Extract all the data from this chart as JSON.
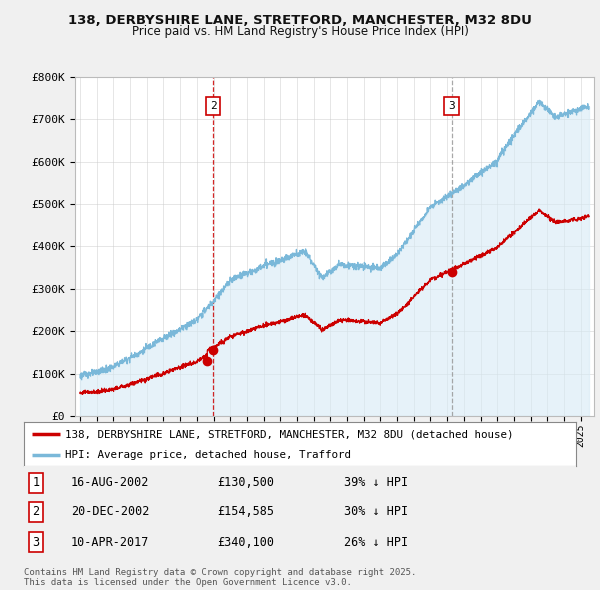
{
  "title_line1": "138, DERBYSHIRE LANE, STRETFORD, MANCHESTER, M32 8DU",
  "title_line2": "Price paid vs. HM Land Registry's House Price Index (HPI)",
  "ylim": [
    0,
    800000
  ],
  "yticks": [
    0,
    100000,
    200000,
    300000,
    400000,
    500000,
    600000,
    700000,
    800000
  ],
  "ytick_labels": [
    "£0",
    "£100K",
    "£200K",
    "£300K",
    "£400K",
    "£500K",
    "£600K",
    "£700K",
    "£800K"
  ],
  "hpi_color": "#7ab8d9",
  "hpi_fill_color": "#d6eaf5",
  "price_color": "#cc0000",
  "sale_marker_color": "#cc0000",
  "vline_color_red": "#cc0000",
  "vline_color_grey": "#999999",
  "annotation_box_color": "#cc0000",
  "grid_color": "#cccccc",
  "legend_house_label": "138, DERBYSHIRE LANE, STRETFORD, MANCHESTER, M32 8DU (detached house)",
  "legend_hpi_label": "HPI: Average price, detached house, Trafford",
  "table_entries": [
    {
      "num": 1,
      "date": "16-AUG-2002",
      "price": "£130,500",
      "pct": "39% ↓ HPI"
    },
    {
      "num": 2,
      "date": "20-DEC-2002",
      "price": "£154,585",
      "pct": "30% ↓ HPI"
    },
    {
      "num": 3,
      "date": "10-APR-2017",
      "price": "£340,100",
      "pct": "26% ↓ HPI"
    }
  ],
  "sale_dates_num": [
    2002.62,
    2002.97,
    2017.27
  ],
  "sale_prices": [
    130500,
    154585,
    340100
  ],
  "footnote": "Contains HM Land Registry data © Crown copyright and database right 2025.\nThis data is licensed under the Open Government Licence v3.0.",
  "bg_color": "#f0f0f0",
  "plot_bg_color": "#ffffff",
  "legend_bg_color": "#ffffff"
}
